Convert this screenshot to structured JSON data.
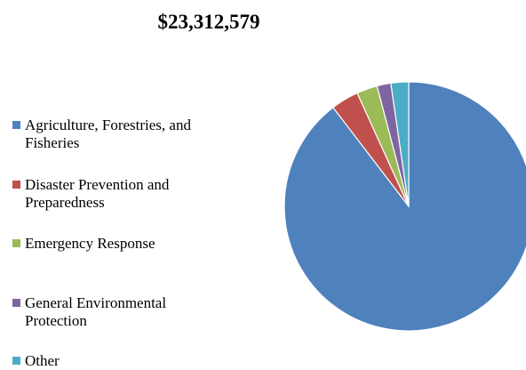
{
  "chart_data": {
    "type": "pie",
    "title": "$23,312,579",
    "categories": [
      "Agriculture, Forestries, and Fisheries",
      "Disaster Prevention and Preparedness",
      "Emergency Response",
      "General Environmental Protection",
      "Other"
    ],
    "values": [
      89.6,
      3.6,
      2.7,
      1.8,
      2.3
    ],
    "colors": [
      "#4F81BD",
      "#C0504D",
      "#9BBB59",
      "#8064A2",
      "#4BACC6"
    ],
    "legend_position": "left"
  }
}
